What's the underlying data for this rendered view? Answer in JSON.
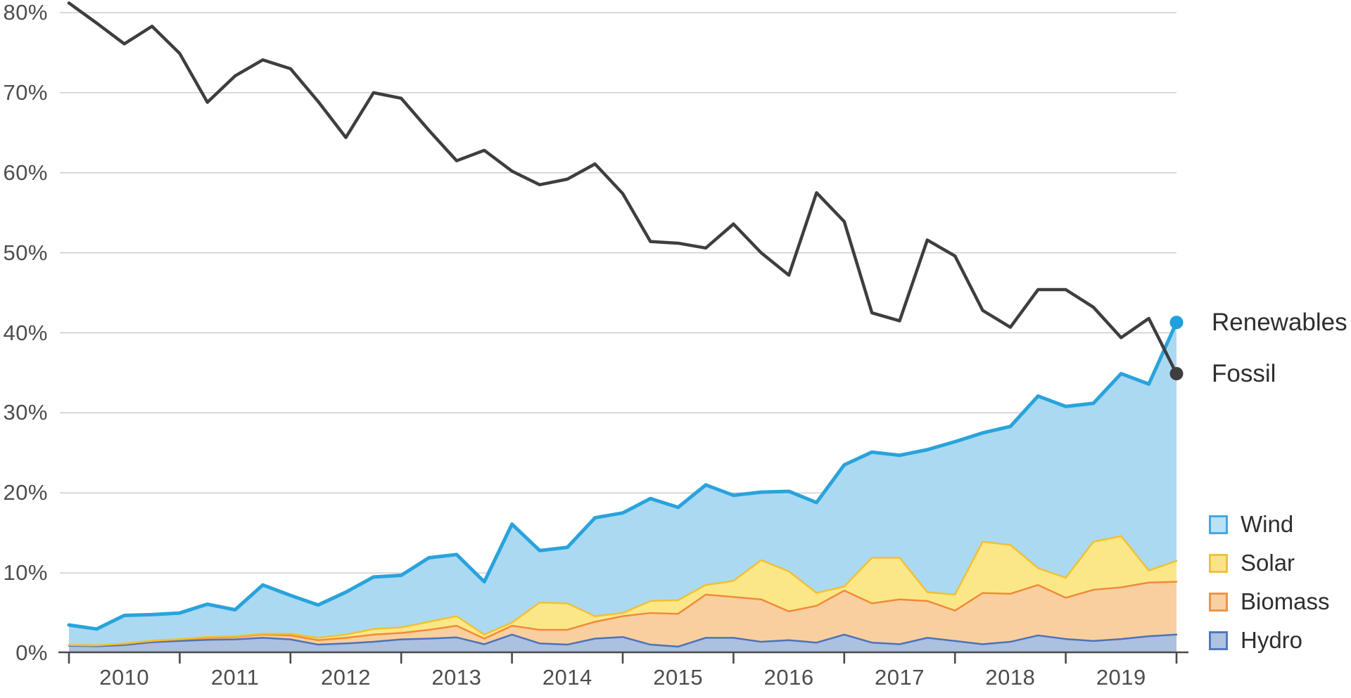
{
  "chart_data": {
    "type": "area",
    "subtype": "stacked-area-with-lines",
    "title": "",
    "xlabel": "",
    "ylabel": "",
    "grid": "horizontal",
    "ylim": [
      0,
      85
    ],
    "y_tick_labels": [
      "0%",
      "10%",
      "20%",
      "30%",
      "40%",
      "50%",
      "60%",
      "70%",
      "80%"
    ],
    "y_tick_values": [
      0,
      10,
      20,
      30,
      40,
      50,
      60,
      70,
      80
    ],
    "x_year_labels": [
      "2010",
      "2011",
      "2012",
      "2013",
      "2014",
      "2015",
      "2016",
      "2017",
      "2018",
      "2019"
    ],
    "x_periods": [
      "2010 Q1",
      "2010 Q2",
      "2010 Q3",
      "2010 Q4",
      "2011 Q1",
      "2011 Q2",
      "2011 Q3",
      "2011 Q4",
      "2012 Q1",
      "2012 Q2",
      "2012 Q3",
      "2012 Q4",
      "2013 Q1",
      "2013 Q2",
      "2013 Q3",
      "2013 Q4",
      "2014 Q1",
      "2014 Q2",
      "2014 Q3",
      "2014 Q4",
      "2015 Q1",
      "2015 Q2",
      "2015 Q3",
      "2015 Q4",
      "2016 Q1",
      "2016 Q2",
      "2016 Q3",
      "2016 Q4",
      "2017 Q1",
      "2017 Q2",
      "2017 Q3",
      "2017 Q4",
      "2018 Q1",
      "2018 Q2",
      "2018 Q3",
      "2018 Q4",
      "2019 Q1",
      "2019 Q2",
      "2019 Q3",
      "2019 Q4",
      "2020 Q1"
    ],
    "series_stacked": [
      {
        "name": "Hydro",
        "fill": "#acc0df",
        "stroke": "#4d73b7",
        "values": [
          0.9,
          0.85,
          1.0,
          1.35,
          1.5,
          1.65,
          1.7,
          1.9,
          1.7,
          1.05,
          1.2,
          1.4,
          1.7,
          1.8,
          1.95,
          1.1,
          2.3,
          1.2,
          1.05,
          1.8,
          2.0,
          1.05,
          0.8,
          1.9,
          1.9,
          1.4,
          1.6,
          1.3,
          2.3,
          1.3,
          1.1,
          1.9,
          1.5,
          1.1,
          1.4,
          2.2,
          1.75,
          1.5,
          1.75,
          2.1,
          2.3
        ]
      },
      {
        "name": "Biomass",
        "fill": "#f9cfa0",
        "stroke": "#f08b38",
        "values": [
          0.1,
          0.1,
          0.15,
          0.15,
          0.2,
          0.25,
          0.3,
          0.4,
          0.5,
          0.55,
          0.7,
          0.9,
          0.8,
          1.1,
          1.45,
          0.7,
          1.1,
          1.7,
          1.85,
          2.1,
          2.6,
          3.95,
          4.1,
          5.4,
          5.1,
          5.3,
          3.6,
          4.6,
          5.5,
          4.9,
          5.6,
          4.6,
          3.8,
          6.4,
          6.0,
          6.3,
          5.15,
          6.4,
          6.45,
          6.7,
          6.6
        ]
      },
      {
        "name": "Solar",
        "fill": "#fce788",
        "stroke": "#f1c12f",
        "values": [
          0.0,
          0.0,
          0.05,
          0.05,
          0.05,
          0.1,
          0.1,
          0.1,
          0.2,
          0.3,
          0.4,
          0.7,
          0.7,
          1.0,
          1.2,
          0.5,
          0.4,
          3.4,
          3.3,
          0.7,
          0.4,
          1.5,
          1.7,
          1.2,
          2.0,
          4.9,
          5.0,
          1.6,
          0.5,
          5.7,
          5.2,
          1.1,
          2.0,
          6.4,
          6.1,
          2.1,
          2.5,
          6.0,
          6.4,
          1.5,
          2.6
        ]
      },
      {
        "name": "Wind",
        "fill": "#abd9f2",
        "stroke": "#29a3dc",
        "values": [
          2.5,
          2.05,
          3.5,
          3.25,
          3.25,
          4.1,
          3.3,
          6.1,
          4.8,
          4.1,
          5.3,
          6.5,
          6.5,
          8.0,
          7.7,
          6.6,
          12.3,
          6.5,
          7.0,
          12.3,
          12.5,
          12.8,
          11.6,
          12.5,
          10.7,
          8.5,
          10.0,
          11.3,
          15.2,
          13.2,
          12.8,
          17.8,
          19.1,
          13.6,
          14.8,
          21.5,
          21.4,
          17.3,
          20.3,
          23.3,
          29.8
        ]
      }
    ],
    "renewables_total": [
      3.5,
      3.0,
      4.7,
      4.8,
      5.0,
      6.1,
      5.4,
      8.5,
      7.2,
      6.0,
      7.6,
      9.5,
      9.7,
      11.9,
      12.3,
      8.9,
      16.1,
      12.8,
      13.2,
      16.9,
      17.5,
      19.3,
      18.2,
      21.0,
      19.7,
      20.1,
      20.2,
      18.8,
      23.5,
      25.1,
      24.7,
      25.4,
      26.4,
      27.5,
      28.3,
      32.1,
      30.8,
      31.2,
      34.9,
      33.6,
      41.3
    ],
    "fossil_line": {
      "name": "Fossil",
      "color": "#3e3e3e",
      "values": [
        81.2,
        78.7,
        76.1,
        78.3,
        74.9,
        68.8,
        72.1,
        74.1,
        73.0,
        68.9,
        64.4,
        70.0,
        69.3,
        65.3,
        61.5,
        62.8,
        60.2,
        58.5,
        59.2,
        61.1,
        57.4,
        51.4,
        51.2,
        50.6,
        53.6,
        50.0,
        47.2,
        57.5,
        53.9,
        42.5,
        41.5,
        51.6,
        49.6,
        42.8,
        40.7,
        45.4,
        45.4,
        43.2,
        39.4,
        41.8,
        34.9
      ]
    },
    "end_labels": {
      "renewables": "Renewables",
      "fossil": "Fossil"
    },
    "end_dots": {
      "renewables_color": "#1fa1dd",
      "fossil_color": "#3e3e3e"
    },
    "legend": [
      {
        "label": "Wind",
        "fill": "#b9e1f7",
        "border": "#45a9de"
      },
      {
        "label": "Solar",
        "fill": "#fbe488",
        "border": "#efc23b"
      },
      {
        "label": "Biomass",
        "fill": "#f9d0a1",
        "border": "#ee9449"
      },
      {
        "label": "Hydro",
        "fill": "#afc2e2",
        "border": "#5379be"
      }
    ],
    "legend_position": "right-bottom",
    "colors": {
      "gridline": "#cecece",
      "axis": "#4a4a4a",
      "axis_text": "#4d4d4d",
      "label_text": "#2e2e2e",
      "background": "#ffffff"
    }
  }
}
